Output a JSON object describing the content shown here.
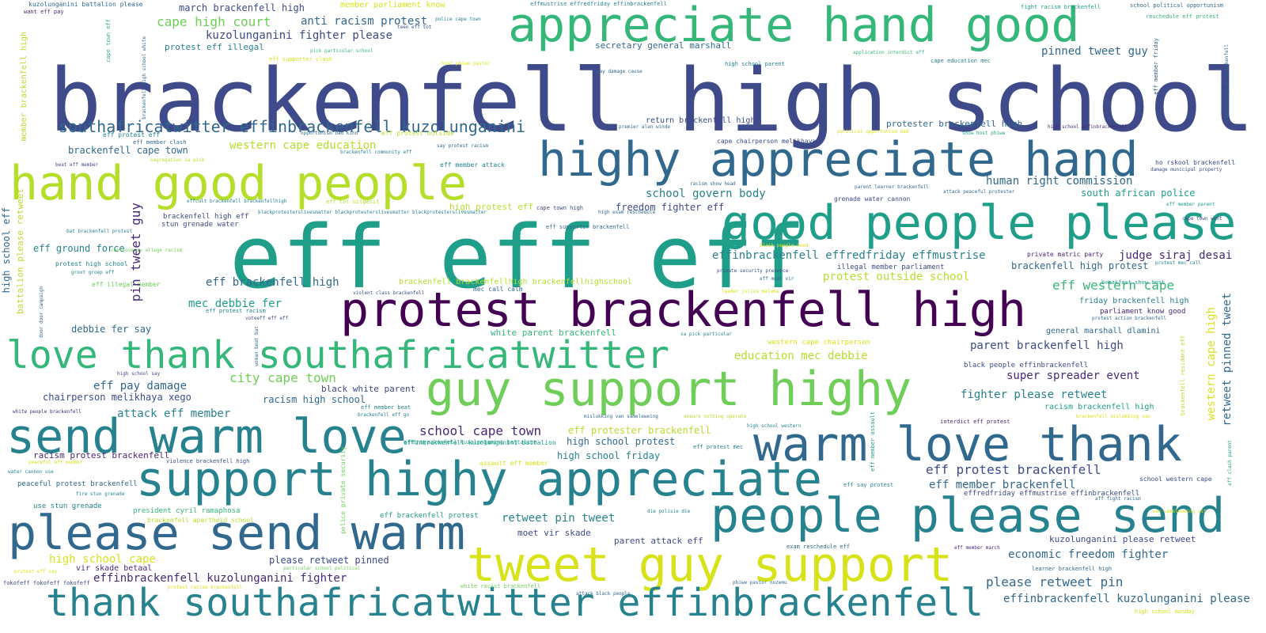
{
  "palette": {
    "d1": "#440154",
    "d2": "#482878",
    "d3": "#3e4a89",
    "d4": "#31688e",
    "d5": "#26828e",
    "d6": "#1f9e89",
    "d7": "#35b779",
    "d8": "#6ece58",
    "d9": "#b5de2b",
    "d10": "#d8e219"
  },
  "words": [
    "brackenfell high school",
    "eff eff eff",
    "appreciate hand good",
    "highy appreciate hand",
    "hand good people",
    "good people please",
    "protest brackenfell high",
    "love thank southafricatwitter",
    "guy support highy",
    "send warm love",
    "warm love thank",
    "support highy appreciate",
    "please send warm",
    "people please send",
    "tweet guy support",
    "thank southafricatwitter effinbrackenfell",
    "southafricatwitter effinbrackenfell kuzolunganini",
    "cape high court",
    "anti racism protest",
    "march brackenfell high",
    "kuzolunganini fighter please",
    "member parliament know",
    "pinned tweet guy",
    "secretary general marshall",
    "protest eff illegal",
    "western cape education",
    "brackenfell cape town",
    "school govern body",
    "human right commission",
    "south african police",
    "freedom fighter eff",
    "judge siraj desai",
    "effinbrackenfell effredfriday effmustrise",
    "protest outside school",
    "brackenfell high protest",
    "eff western cape",
    "eff ground force",
    "eff brackenfell high",
    "mec debbie fer",
    "debbie fer say",
    "education mec debbie",
    "parent brackenfell high",
    "city cape town",
    "super spreader event",
    "eff pay damage",
    "black white parent",
    "chairperson melikhaya xego",
    "racism high school",
    "fighter please retweet",
    "attack eff member",
    "school cape town",
    "eff protester brackenfell",
    "high school protest",
    "eff protest brackenfell",
    "eff member brackenfell",
    "racism protest brackenfell",
    "high school friday",
    "retweet pin tweet",
    "economic freedom fighter",
    "kuzolunganini please retweet",
    "high school cape",
    "please retweet pinned",
    "vir skade betaal",
    "moet vir skade",
    "parent attack eff",
    "effinbrackenfell kuzolunganini fighter",
    "please retweet pin",
    "effinbrackenfell kuzolunganini please",
    "return brackenfell high",
    "protester brackenfell high",
    "high protest eff",
    "brackenfell high eff",
    "stun grenade water",
    "grenade water cannon",
    "general marshall dlamini",
    "friday brackenfell high",
    "parliament know good",
    "illegal member parliament",
    "white parent brackenfell",
    "western cape chairperson",
    "black people effinbrackenfell",
    "racism brackenfell high",
    "president cyril ramaphosa",
    "eff brackenfell protest",
    "peaceful protest brackenfell",
    "use stun grenade",
    "school western cape",
    "effredfriday effmustrise effinbrackenfell",
    "brackenfell brackenfellhigh brackenfellhighschool",
    "effinbrackenfell kuzolunganini battalion",
    "brackenfell apartheid school",
    "kuzolunganini battalion please",
    "want eff pay",
    "effmustrise effredfriday effinbrackenfell",
    "fight racism brackenfell",
    "school political opportunism",
    "reschedule eff protest",
    "police cape town",
    "teen eff tot",
    "pick particular school",
    "eff supporter clash",
    "host phiwe pastor",
    "application interdict eff",
    "cape education mec",
    "high school parent",
    "pay damage cause",
    "premier alan winde",
    "political opportunism bad",
    "high school effinbrackenfell",
    "show host phiwe",
    "cape chairperson melikhaya",
    "say protest racism",
    "opportunism bad kind",
    "eff protest outside",
    "eff protest eff",
    "eff member clash",
    "beat eff member",
    "segregation sa pick",
    "brackenfell community eff",
    "eff member attack",
    "racism show head",
    "parent learner brackenfell",
    "attack peaceful protester",
    "ho rskool brackenfell",
    "damage municipal property",
    "effcult brackenfell brackenfellhigh",
    "eff tot uitgesit",
    "blackprotesterslivesmatter blackprotesterslivesmatter blackprotesterslivesmatter",
    "cape town high",
    "high exam reschedule",
    "eff member parent",
    "cape town want",
    "bat brackenfell protest",
    "eff supporter brackenfell",
    "black people need",
    "private matric party",
    "protest mec call",
    "controversy allege racism",
    "protest high school",
    "groot groep eff",
    "private security presence",
    "eff moet vir",
    "eff illegal member",
    "violent class brackenfell",
    "mec call calm",
    "leader julius malema",
    "breakfast show host",
    "eff protest racism",
    "voteeff eff eff",
    "protest action brackenfell",
    "sa pick particular",
    "high school say",
    "white people brackenfell",
    "eff member beat",
    "brackenfell eff go",
    "mislukking van sameleweing",
    "ensure nothing operate",
    "high school western",
    "interdict eff protest",
    "brackenfell mislukking van",
    "peaceful eff member",
    "violence brackenfell high",
    "effinbrackenfell kuzolunganini battalion",
    "eff protest mec",
    "water cannon use",
    "assault eff member",
    "eff say protest",
    "aff fight racism",
    "fire stun grenade",
    "die polisie die",
    "van sameleweing uit",
    "exam reschedule eff",
    "eff member march",
    "protest eff say",
    "particular school political",
    "learner brackenfell high",
    "fokofeff fokofeff fokofeff",
    "protest racism brackenfell",
    "white racist brackenfell",
    "attack black people",
    "phiwe pastor nozemu",
    "high school monday",
    "member brackenfell high",
    "high school eff",
    "battalion please retweet",
    "cape town eff",
    "pin tweet guy",
    "brackenfell high school white",
    "eff member friday",
    "sameleweing uit brackenfell",
    "western cape high",
    "retweet pinned tweet",
    "brackenfell resident eff",
    "eff clash parent",
    "police private security",
    "woman beat bat",
    "eff member assault",
    "door door campaign"
  ]
}
